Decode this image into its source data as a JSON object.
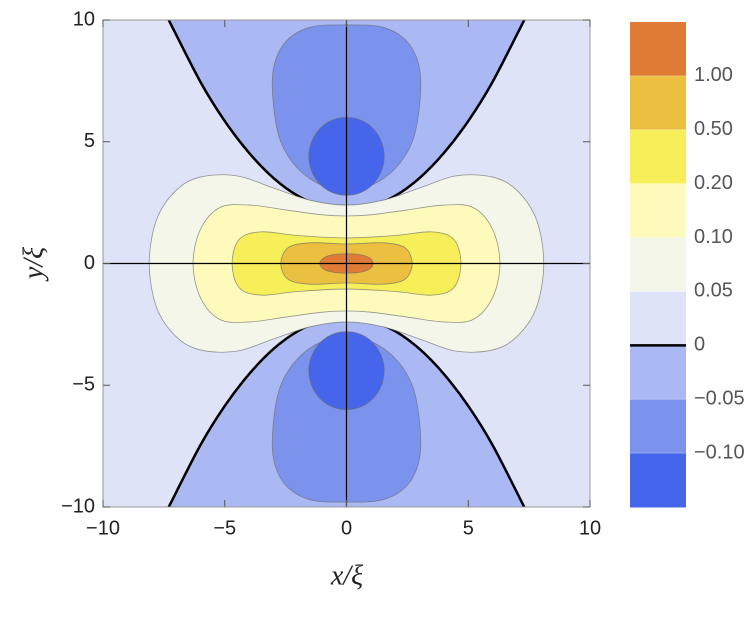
{
  "chart_data": {
    "type": "contour",
    "x_label": "x/ξ",
    "y_label": "y/ξ",
    "xlim": [
      -10,
      10
    ],
    "ylim": [
      -10,
      10
    ],
    "xticks": [
      {
        "value": -10,
        "label": "−10"
      },
      {
        "value": -5,
        "label": "−5"
      },
      0,
      5,
      10
    ],
    "yticks": [
      {
        "value": -10,
        "label": "−10"
      },
      {
        "value": -5,
        "label": "−5"
      },
      0,
      5,
      10
    ],
    "background": "#dfe3f8",
    "axes_lines": true,
    "zero_line": {
      "color": "#000000",
      "width": 2.5
    },
    "contour_line_color": "#6b6b6b",
    "contours": [
      {
        "level": 0,
        "closed": false,
        "color": "#aab9f3",
        "x": [
          -7.3,
          -6,
          -5,
          -4,
          -3,
          -2,
          -1,
          0,
          1,
          2,
          3,
          4,
          5,
          6,
          7.3
        ],
        "y": [
          10,
          7.46,
          5.85,
          4.54,
          3.51,
          2.78,
          2.35,
          2.2,
          2.35,
          2.78,
          3.51,
          4.54,
          5.85,
          7.46,
          10
        ]
      },
      {
        "level": 0,
        "closed": false,
        "color": "#aab9f3",
        "x": [
          -7.3,
          -6,
          -5,
          -4,
          -3,
          -2,
          -1,
          0,
          1,
          2,
          3,
          4,
          5,
          6,
          7.3
        ],
        "y": [
          -10,
          -7.46,
          -5.85,
          -4.54,
          -3.51,
          -2.78,
          -2.35,
          -2.2,
          -2.35,
          -2.78,
          -3.51,
          -4.54,
          -5.85,
          -7.46,
          -10
        ]
      },
      {
        "level": -0.05,
        "closed": true,
        "color": "#7c93ee",
        "x": [
          0,
          1.5,
          2.5,
          3.0,
          3.0,
          2.7,
          2.0,
          1.0,
          0,
          -1.0,
          -2.0,
          -2.7,
          -3.0,
          -3.0,
          -2.5,
          -1.5
        ],
        "y": [
          9.8,
          9.7,
          9.1,
          8.0,
          6.5,
          5.0,
          3.9,
          3.2,
          3.0,
          3.2,
          3.9,
          5.0,
          6.5,
          8.0,
          9.1,
          9.7
        ]
      },
      {
        "level": -0.05,
        "closed": true,
        "color": "#7c93ee",
        "x": [
          0,
          1.5,
          2.5,
          3.0,
          3.0,
          2.7,
          2.0,
          1.0,
          0,
          -1.0,
          -2.0,
          -2.7,
          -3.0,
          -3.0,
          -2.5,
          -1.5
        ],
        "y": [
          -9.8,
          -9.7,
          -9.1,
          -8.0,
          -6.5,
          -5.0,
          -3.9,
          -3.2,
          -3.0,
          -3.2,
          -3.9,
          -5.0,
          -6.5,
          -8.0,
          -9.1,
          -9.7
        ]
      },
      {
        "level": -0.1,
        "closed": true,
        "color": "#4566ea",
        "x": [
          1.55,
          1.34,
          0.78,
          0,
          -0.78,
          -1.34,
          -1.55,
          -1.34,
          -0.78,
          0,
          0.78,
          1.34
        ],
        "y": [
          4.4,
          5.2,
          5.79,
          6.0,
          5.79,
          5.2,
          4.4,
          3.6,
          3.01,
          2.8,
          3.01,
          3.6
        ]
      },
      {
        "level": -0.1,
        "closed": true,
        "color": "#4566ea",
        "x": [
          1.55,
          1.34,
          0.78,
          0,
          -0.78,
          -1.34,
          -1.55,
          -1.34,
          -0.78,
          0,
          0.78,
          1.34
        ],
        "y": [
          -4.4,
          -5.2,
          -5.79,
          -6.0,
          -5.79,
          -5.2,
          -4.4,
          -3.6,
          -3.01,
          -2.8,
          -3.01,
          -3.6
        ]
      },
      {
        "level": 0.05,
        "closed": true,
        "color": "#f5f6ea",
        "x": [
          8.1,
          7.8,
          7,
          6,
          4.5,
          3,
          1.5,
          0,
          -1.5,
          -3,
          -4.5,
          -6,
          -7,
          -7.8,
          -8.1,
          -7.8,
          -7,
          -6,
          -4.5,
          -3,
          -1.5,
          0,
          1.5,
          3,
          4.5,
          6,
          7,
          7.8
        ],
        "y": [
          0,
          1.8,
          3.0,
          3.55,
          3.6,
          3.1,
          2.6,
          2.4,
          2.6,
          3.1,
          3.6,
          3.55,
          3.0,
          1.8,
          0,
          -1.8,
          -3.0,
          -3.55,
          -3.6,
          -3.1,
          -2.6,
          -2.4,
          -2.6,
          -3.1,
          -3.6,
          -3.55,
          -3.0,
          -1.8
        ]
      },
      {
        "level": 0.1,
        "closed": true,
        "color": "#fdfabc",
        "x": [
          6.3,
          6.0,
          5.2,
          4,
          2.5,
          1,
          0,
          -1,
          -2.5,
          -4,
          -5.2,
          -6.0,
          -6.3,
          -6.0,
          -5.2,
          -4,
          -2.5,
          -1,
          0,
          1,
          2.5,
          4,
          5.2,
          6.0
        ],
        "y": [
          0,
          1.4,
          2.3,
          2.4,
          2.2,
          2.0,
          1.95,
          2.0,
          2.2,
          2.4,
          2.3,
          1.4,
          0,
          -1.4,
          -2.3,
          -2.4,
          -2.2,
          -2.0,
          -1.95,
          -2.0,
          -2.2,
          -2.4,
          -2.3,
          -1.4
        ]
      },
      {
        "level": 0.2,
        "closed": true,
        "color": "#f7ef5a",
        "x": [
          4.7,
          4.4,
          3.5,
          2,
          0,
          -2,
          -3.5,
          -4.4,
          -4.7,
          -4.4,
          -3.5,
          -2,
          0,
          2,
          3.5,
          4.4
        ],
        "y": [
          0,
          1.0,
          1.3,
          1.15,
          1.05,
          1.15,
          1.3,
          1.0,
          0,
          -1.0,
          -1.3,
          -1.15,
          -1.05,
          -1.15,
          -1.3,
          -1.0
        ]
      },
      {
        "level": 0.5,
        "closed": true,
        "color": "#ebbf3f",
        "x": [
          2.7,
          2.4,
          1.5,
          0,
          -1.5,
          -2.4,
          -2.7,
          -2.4,
          -1.5,
          0,
          1.5,
          2.4
        ],
        "y": [
          0,
          0.65,
          0.85,
          0.8,
          0.85,
          0.65,
          0,
          -0.65,
          -0.85,
          -0.8,
          -0.85,
          -0.65
        ]
      },
      {
        "level": 1,
        "closed": true,
        "color": "#e07b35",
        "x": [
          1.1,
          0.8,
          0,
          -0.8,
          -1.1,
          -0.8,
          0,
          0.8
        ],
        "y": [
          0,
          0.3,
          0.4,
          0.3,
          0,
          -0.3,
          -0.4,
          -0.3
        ]
      }
    ],
    "colorbar": {
      "ticks": [
        {
          "value": 1,
          "label": "1.00"
        },
        {
          "value": 0.5,
          "label": "0.50"
        },
        {
          "value": 0.2,
          "label": "0.20"
        },
        {
          "value": 0.1,
          "label": "0.10"
        },
        {
          "value": 0.05,
          "label": "0.05"
        },
        0,
        {
          "value": -0.05,
          "label": "−0.05"
        },
        {
          "value": -0.1,
          "label": "−0.10"
        }
      ],
      "colors": [
        "#e07b35",
        "#ebbf3f",
        "#f7ef5a",
        "#fdfabc",
        "#f5f6ea",
        "#dfe3f8",
        "#aab9f3",
        "#7c93ee",
        "#4566ea"
      ]
    }
  }
}
